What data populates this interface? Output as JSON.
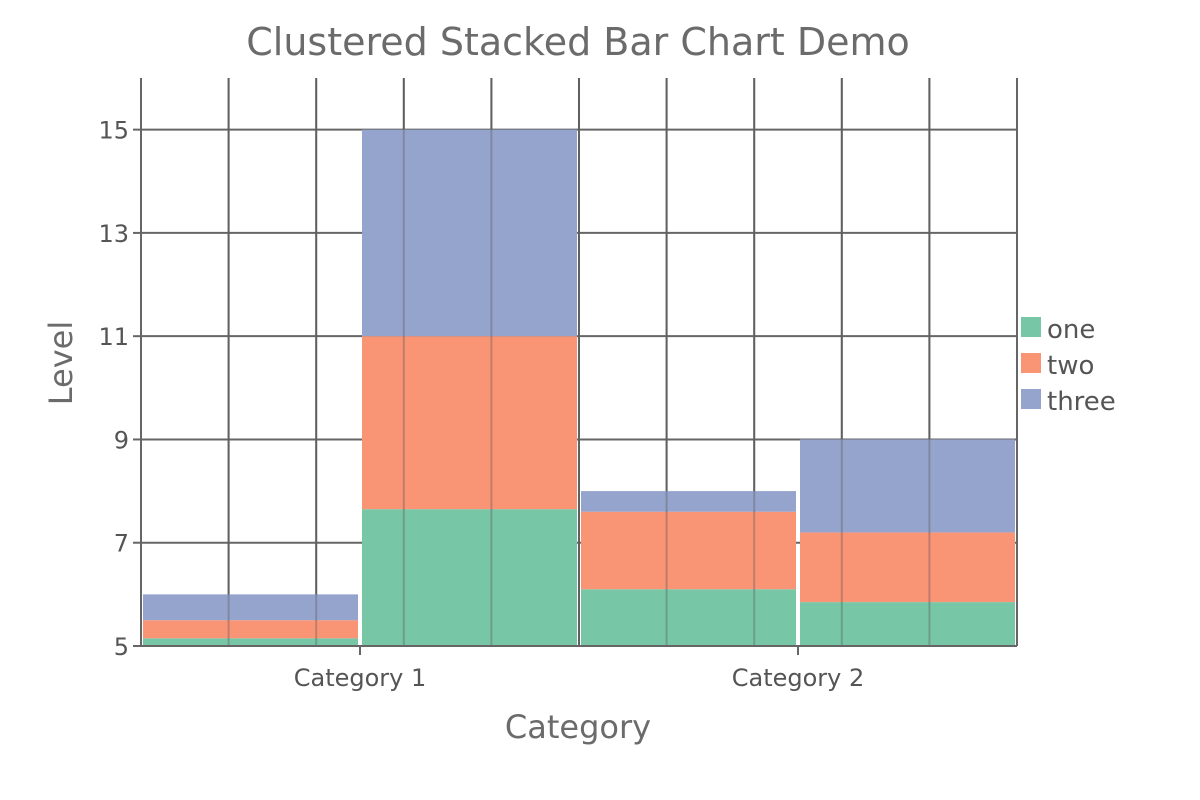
{
  "chart_data": {
    "type": "bar",
    "subtype": "clustered-stacked",
    "title": "Clustered Stacked Bar Chart Demo",
    "xlabel": "Category",
    "ylabel": "Level",
    "categories": [
      "Category 1",
      "Category 2"
    ],
    "ylim": [
      5,
      16
    ],
    "yticks": [
      5,
      7,
      9,
      11,
      13,
      15
    ],
    "grid": true,
    "legend_position": "right",
    "series": [
      {
        "name": "one",
        "color": "#77c7a7"
      },
      {
        "name": "two",
        "color": "#f99475"
      },
      {
        "name": "three",
        "color": "#95a4cd"
      }
    ],
    "clusters": [
      {
        "category": "Category 1",
        "bars": [
          {
            "base": 5,
            "stack": [
              0.15,
              0.35,
              0.5
            ]
          },
          {
            "base": 5,
            "stack": [
              2.65,
              3.35,
              4.0
            ]
          }
        ]
      },
      {
        "category": "Category 2",
        "bars": [
          {
            "base": 5,
            "stack": [
              1.1,
              1.5,
              0.4
            ]
          },
          {
            "base": 5,
            "stack": [
              0.85,
              1.35,
              1.8
            ]
          }
        ]
      }
    ]
  }
}
